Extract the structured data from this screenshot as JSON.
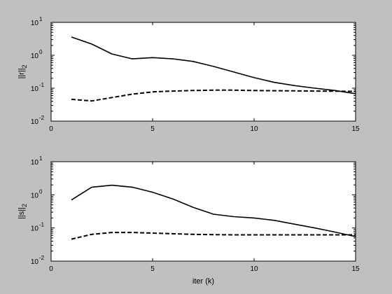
{
  "chart_data": [
    {
      "type": "line",
      "ylabel": "||r||",
      "ylabel_sub": "2",
      "xlabel": "",
      "xlim": [
        0,
        15
      ],
      "ylim": [
        0.01,
        10
      ],
      "yscale": "log",
      "grid": false,
      "xticks": [
        "0",
        "5",
        "10",
        "15"
      ],
      "yticks": [
        {
          "base": "10",
          "exp": "-2"
        },
        {
          "base": "10",
          "exp": "-1"
        },
        {
          "base": "10",
          "exp": "0"
        },
        {
          "base": "10",
          "exp": "1"
        }
      ],
      "series": [
        {
          "style": "solid",
          "color": "#000000",
          "x": [
            1,
            2,
            3,
            4,
            5,
            6,
            7,
            8,
            9,
            10,
            11,
            12,
            13,
            14,
            15
          ],
          "y": [
            3.6,
            2.2,
            1.1,
            0.78,
            0.85,
            0.78,
            0.65,
            0.46,
            0.31,
            0.21,
            0.15,
            0.12,
            0.1,
            0.085,
            0.068
          ]
        },
        {
          "style": "dashed",
          "color": "#000000",
          "x": [
            1,
            2,
            3,
            4,
            5,
            6,
            7,
            8,
            9,
            10,
            11,
            12,
            13,
            14,
            15
          ],
          "y": [
            0.046,
            0.041,
            0.052,
            0.066,
            0.077,
            0.082,
            0.085,
            0.087,
            0.087,
            0.085,
            0.084,
            0.083,
            0.082,
            0.081,
            0.08
          ]
        }
      ]
    },
    {
      "type": "line",
      "ylabel": "||s||",
      "ylabel_sub": "2",
      "xlabel": "iter (k)",
      "xlim": [
        0,
        15
      ],
      "ylim": [
        0.01,
        10
      ],
      "yscale": "log",
      "grid": false,
      "xticks": [
        "0",
        "5",
        "10",
        "15"
      ],
      "yticks": [
        {
          "base": "10",
          "exp": "-2"
        },
        {
          "base": "10",
          "exp": "-1"
        },
        {
          "base": "10",
          "exp": "0"
        },
        {
          "base": "10",
          "exp": "1"
        }
      ],
      "series": [
        {
          "style": "solid",
          "color": "#000000",
          "x": [
            1,
            2,
            3,
            4,
            5,
            6,
            7,
            8,
            9,
            10,
            11,
            12,
            13,
            14,
            15
          ],
          "y": [
            0.7,
            1.7,
            1.95,
            1.7,
            1.2,
            0.75,
            0.42,
            0.26,
            0.22,
            0.2,
            0.17,
            0.13,
            0.1,
            0.075,
            0.055
          ]
        },
        {
          "style": "dashed",
          "color": "#000000",
          "x": [
            1,
            2,
            3,
            4,
            5,
            6,
            7,
            8,
            9,
            10,
            11,
            12,
            13,
            14,
            15
          ],
          "y": [
            0.046,
            0.064,
            0.073,
            0.073,
            0.07,
            0.067,
            0.064,
            0.063,
            0.062,
            0.062,
            0.062,
            0.062,
            0.062,
            0.062,
            0.062
          ]
        }
      ]
    }
  ]
}
